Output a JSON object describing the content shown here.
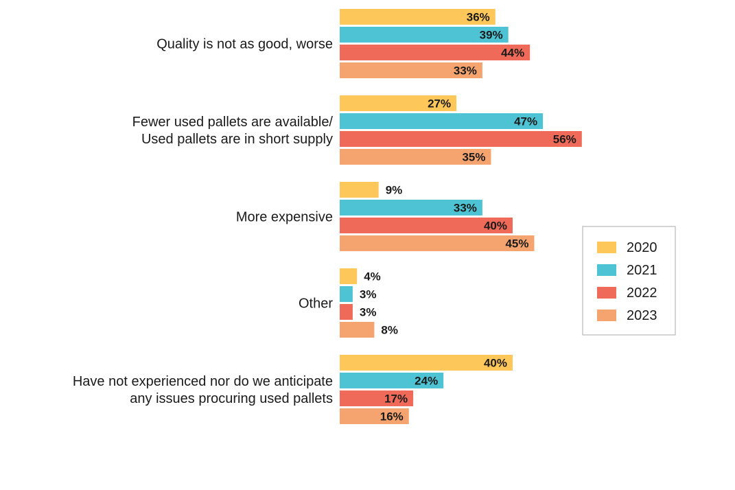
{
  "chart_data": {
    "type": "bar",
    "orientation": "horizontal",
    "title": "",
    "xlabel": "",
    "ylabel": "",
    "xlim": [
      0,
      60
    ],
    "grid": false,
    "legend_position": "right",
    "value_suffix": "%",
    "categories": [
      [
        "Quality is not as good, worse"
      ],
      [
        "Fewer used pallets are available/",
        "Used pallets are in short supply"
      ],
      [
        "More expensive"
      ],
      [
        "Other"
      ],
      [
        "Have not experienced nor do we anticipate",
        "any issues procuring used pallets"
      ]
    ],
    "series": [
      {
        "name": "2020",
        "color": "#FDC75A",
        "values": [
          36,
          27,
          9,
          4,
          40
        ]
      },
      {
        "name": "2021",
        "color": "#4DC3D3",
        "values": [
          39,
          47,
          33,
          3,
          24
        ]
      },
      {
        "name": "2022",
        "color": "#EF6A58",
        "values": [
          44,
          56,
          40,
          3,
          17
        ]
      },
      {
        "name": "2023",
        "color": "#F6A46F",
        "values": [
          33,
          35,
          45,
          8,
          16
        ]
      }
    ]
  }
}
